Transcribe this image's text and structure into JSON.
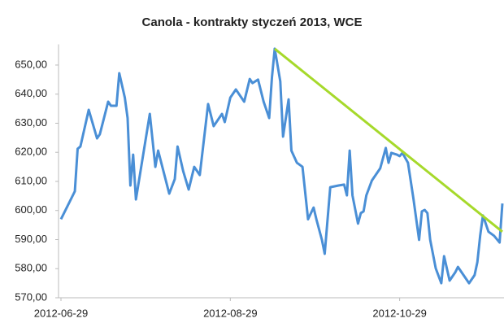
{
  "chart_data": {
    "type": "line",
    "title": "Canola - kontrakty styczeń 2013, WCE",
    "x": [
      "2012-06-29",
      "2012-07-04",
      "2012-07-05",
      "2012-07-06",
      "2012-07-09",
      "2012-07-12",
      "2012-07-13",
      "2012-07-16",
      "2012-07-17",
      "2012-07-19",
      "2012-07-20",
      "2012-07-22",
      "2012-07-23",
      "2012-07-24",
      "2012-07-25",
      "2012-07-26",
      "2012-07-31",
      "2012-08-02",
      "2012-08-03",
      "2012-08-07",
      "2012-08-09",
      "2012-08-10",
      "2012-08-12",
      "2012-08-14",
      "2012-08-16",
      "2012-08-18",
      "2012-08-21",
      "2012-08-23",
      "2012-08-26",
      "2012-08-27",
      "2012-08-29",
      "2012-08-31",
      "2012-09-03",
      "2012-09-05",
      "2012-09-06",
      "2012-09-08",
      "2012-09-10",
      "2012-09-12",
      "2012-09-13",
      "2012-09-14",
      "2012-09-16",
      "2012-09-17",
      "2012-09-19",
      "2012-09-20",
      "2012-09-22",
      "2012-09-24",
      "2012-09-26",
      "2012-09-28",
      "2012-09-29",
      "2012-10-01",
      "2012-10-02",
      "2012-10-04",
      "2012-10-07",
      "2012-10-09",
      "2012-10-10",
      "2012-10-11",
      "2012-10-12",
      "2012-10-14",
      "2012-10-15",
      "2012-10-16",
      "2012-10-17",
      "2012-10-19",
      "2012-10-22",
      "2012-10-24",
      "2012-10-25",
      "2012-10-26",
      "2012-10-28",
      "2012-10-29",
      "2012-10-30",
      "2012-11-01",
      "2012-11-03",
      "2012-11-05",
      "2012-11-06",
      "2012-11-07",
      "2012-11-08",
      "2012-11-09",
      "2012-11-11",
      "2012-11-13",
      "2012-11-14",
      "2012-11-16",
      "2012-11-18",
      "2012-11-19",
      "2012-11-21",
      "2012-11-23",
      "2012-11-25",
      "2012-11-26",
      "2012-11-27",
      "2012-11-28",
      "2012-11-30",
      "2012-12-02",
      "2012-12-04",
      "2012-12-05"
    ],
    "series": [
      {
        "name": "Canola",
        "color": "#4a8fd6",
        "values": [
          597,
          606.6,
          621.2,
          622,
          634.6,
          624.8,
          626.2,
          637.4,
          636,
          636,
          647.2,
          638.8,
          631.8,
          608.6,
          619.2,
          603.8,
          633.2,
          615,
          620.6,
          605.8,
          610.8,
          622,
          613.6,
          607.2,
          615,
          612.2,
          636.6,
          629,
          633.2,
          630.4,
          638.8,
          641.6,
          637.4,
          645.2,
          643.8,
          645,
          637.4,
          631.8,
          645.8,
          655.6,
          644.4,
          625.4,
          638.2,
          620.6,
          616.4,
          615,
          597,
          601,
          597,
          589.9,
          585.1,
          608,
          608.6,
          608.9,
          605.2,
          620.6,
          605.2,
          595.5,
          599.1,
          599.7,
          605.2,
          610.3,
          614.5,
          621.5,
          616.4,
          619.8,
          619.2,
          618.7,
          619.8,
          616.4,
          603.8,
          589.9,
          599.7,
          600.2,
          599.1,
          589.9,
          580.1,
          575,
          584.3,
          575.9,
          578.7,
          580.6,
          577.8,
          575,
          577.8,
          582.3,
          591.3,
          598.3,
          592.7,
          591.3,
          589,
          602.4
        ]
      }
    ],
    "trendline": {
      "color": "#a6d92b",
      "x": [
        "2012-09-14",
        "2012-12-05"
      ],
      "values": [
        655.6,
        592.7
      ]
    },
    "xlim": [
      "2012-06-29",
      "2012-12-05"
    ],
    "xticks": [
      "2012-06-29",
      "2012-08-29",
      "2012-10-29"
    ],
    "ylim": [
      570,
      656
    ],
    "yticks": [
      {
        "value": 570,
        "label": "570,00"
      },
      {
        "value": 580,
        "label": "580,00"
      },
      {
        "value": 590,
        "label": "590,00"
      },
      {
        "value": 600,
        "label": "600,00"
      },
      {
        "value": 610,
        "label": "610,00"
      },
      {
        "value": 620,
        "label": "620,00"
      },
      {
        "value": 630,
        "label": "630,00"
      },
      {
        "value": 640,
        "label": "640,00"
      },
      {
        "value": 650,
        "label": "650,00"
      }
    ]
  }
}
